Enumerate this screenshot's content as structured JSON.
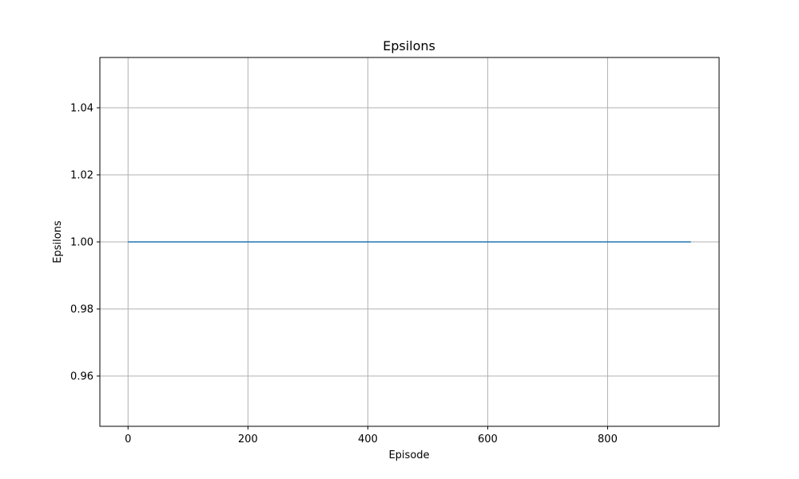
{
  "chart_data": {
    "type": "line",
    "title": "Epsilons",
    "xlabel": "Episode",
    "ylabel": "Epsilons",
    "xlim": [
      -47,
      986
    ],
    "ylim": [
      0.945,
      1.055
    ],
    "xticks": [
      0,
      200,
      400,
      600,
      800
    ],
    "yticks": [
      0.96,
      0.98,
      1.0,
      1.02,
      1.04
    ],
    "ytick_labels": [
      "0.96",
      "0.98",
      "1.00",
      "1.02",
      "1.04"
    ],
    "xtick_labels": [
      "0",
      "200",
      "400",
      "600",
      "800"
    ],
    "grid": true,
    "series": [
      {
        "x": [
          0,
          939
        ],
        "y": [
          1.0,
          1.0
        ],
        "color": "#1f77b4"
      }
    ]
  }
}
